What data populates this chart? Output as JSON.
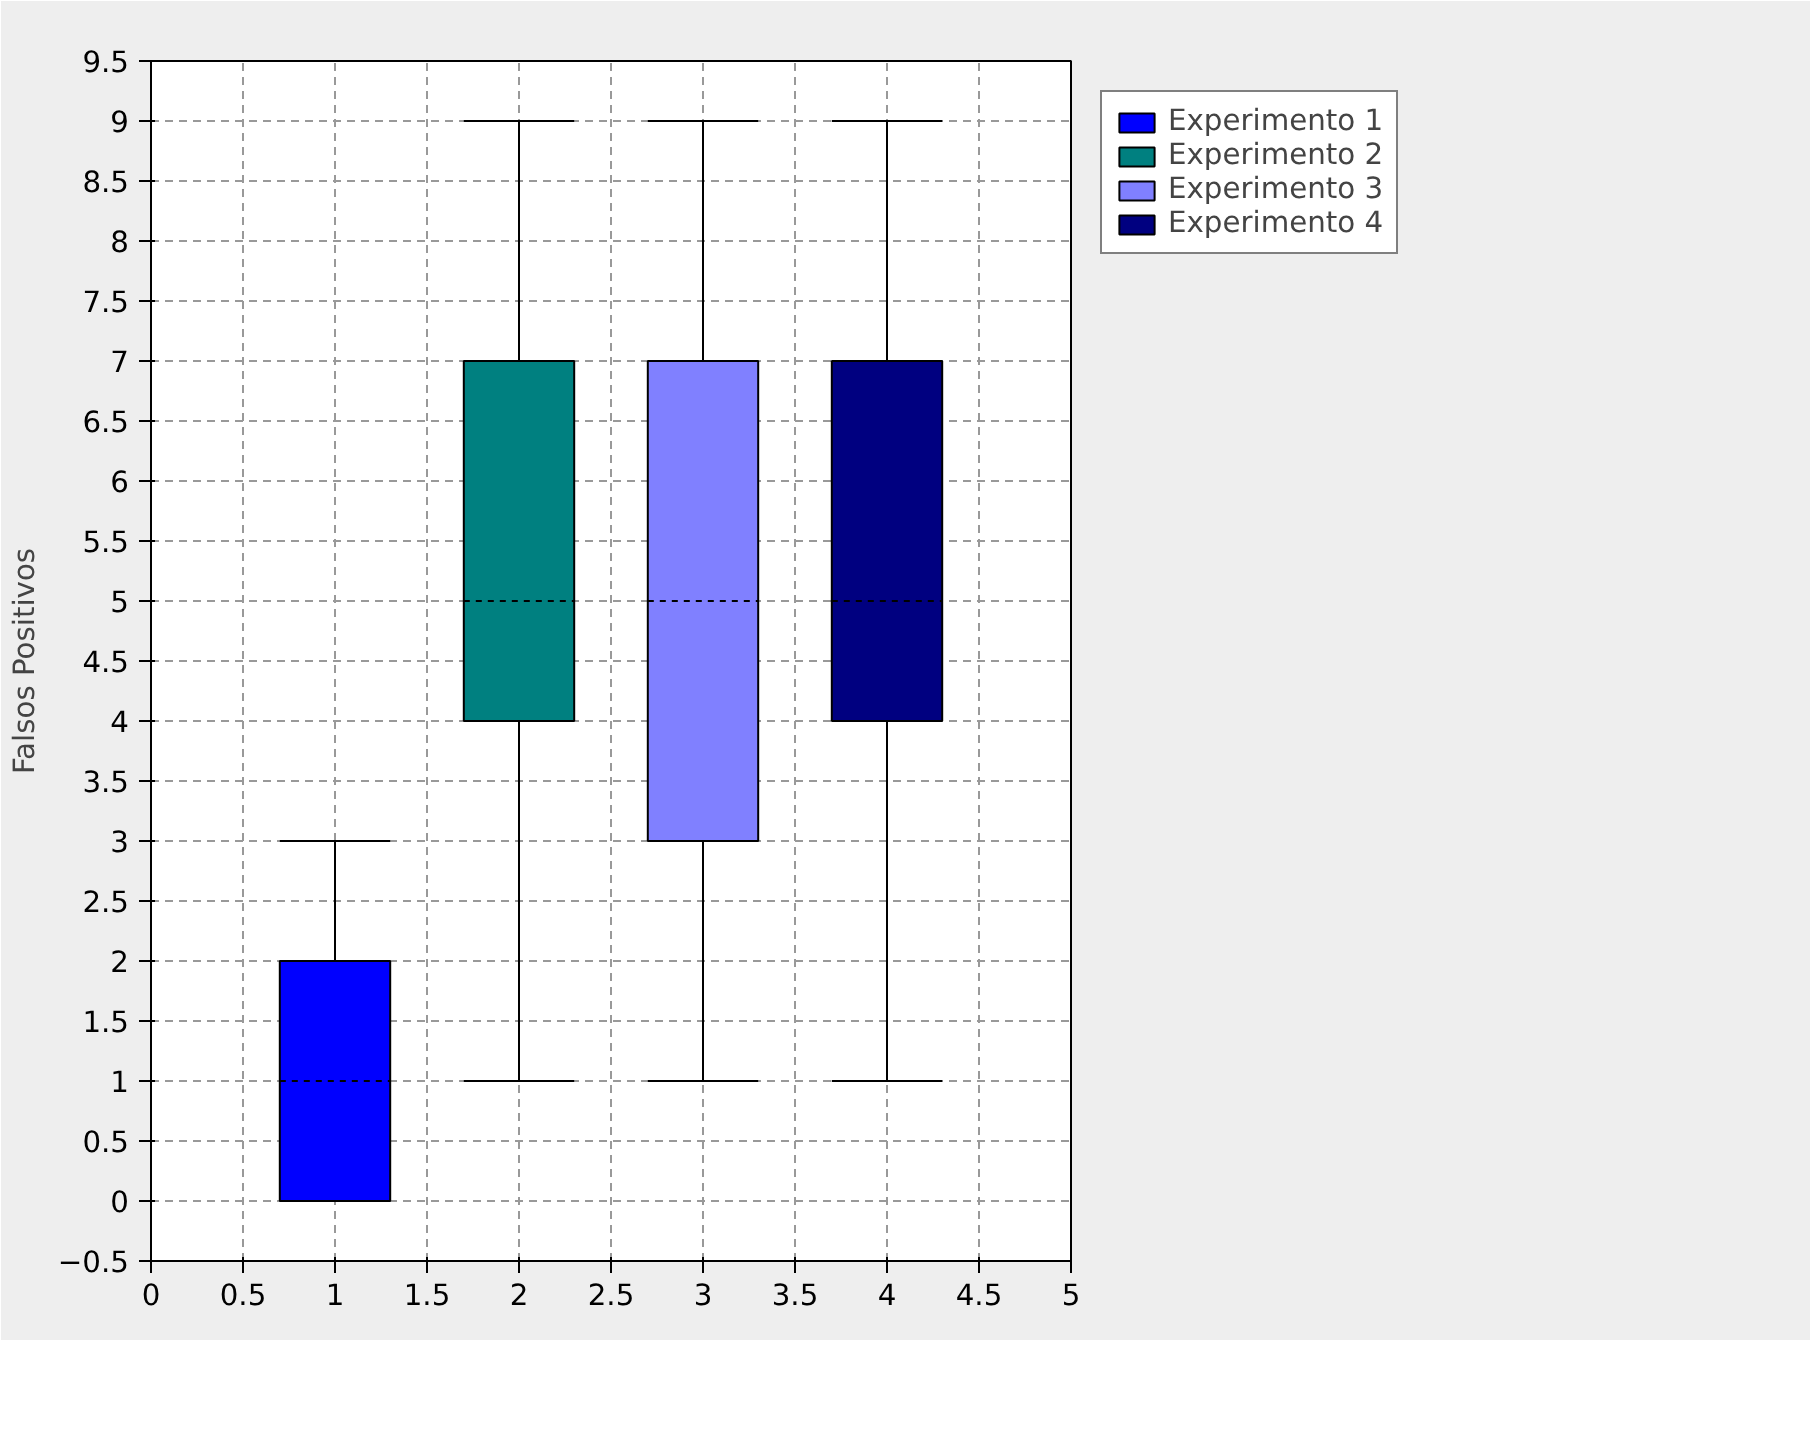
{
  "chart_data": {
    "type": "box",
    "ylabel": "Falsos Positivos",
    "xlim": [
      0,
      5
    ],
    "ylim": [
      -0.5,
      9.5
    ],
    "xticks": [
      0,
      0.5,
      1,
      1.5,
      2,
      2.5,
      3,
      3.5,
      4,
      4.5,
      5
    ],
    "yticks": [
      -0.5,
      0,
      0.5,
      1,
      1.5,
      2,
      2.5,
      3,
      3.5,
      4,
      4.5,
      5,
      5.5,
      6,
      6.5,
      7,
      7.5,
      8,
      8.5,
      9,
      9.5
    ],
    "grid": true,
    "legend": "right",
    "series": [
      {
        "name": "Experimento 1",
        "color": "#0000ff",
        "x": [
          1
        ],
        "boxes": [
          {
            "low": 0,
            "q1": 0,
            "median": 1,
            "q3": 2,
            "high": 3
          }
        ]
      },
      {
        "name": "Experimento 2",
        "color": "#008080",
        "x": [
          2
        ],
        "boxes": [
          {
            "low": 1,
            "q1": 4,
            "median": 5,
            "q3": 7,
            "high": 9
          }
        ]
      },
      {
        "name": "Experimento 3",
        "color": "#8080ff",
        "x": [
          3
        ],
        "boxes": [
          {
            "low": 1,
            "q1": 3,
            "median": 5,
            "q3": 7,
            "high": 9
          }
        ]
      },
      {
        "name": "Experimento 4",
        "color": "#000080",
        "x": [
          4
        ],
        "boxes": [
          {
            "low": 1,
            "q1": 4,
            "median": 5,
            "q3": 7,
            "high": 9
          }
        ]
      }
    ]
  }
}
